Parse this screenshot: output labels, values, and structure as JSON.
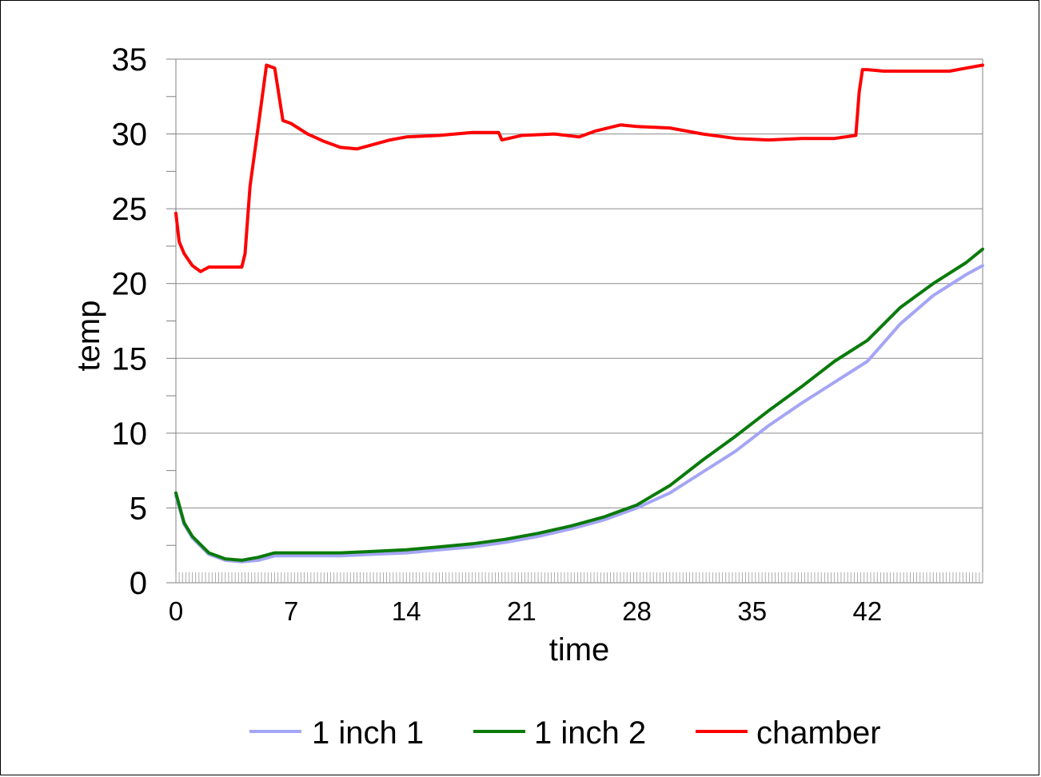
{
  "chart_data": {
    "type": "line",
    "title": "",
    "xlabel": "time",
    "ylabel": "temp",
    "xlim": [
      0,
      49
    ],
    "ylim": [
      0,
      35
    ],
    "x_ticks": [
      "0",
      "7",
      "14",
      "21",
      "28",
      "35",
      "42"
    ],
    "y_ticks": [
      "0",
      "5",
      "10",
      "15",
      "20",
      "25",
      "30",
      "35"
    ],
    "grid": "horizontal",
    "legend_position": "bottom",
    "series": [
      {
        "name": "1 inch 1",
        "color": "#A5A5F5",
        "x": [
          0,
          0.5,
          1,
          2,
          3,
          4,
          5,
          6,
          7,
          8,
          10,
          12,
          14,
          16,
          18,
          20,
          22,
          24,
          26,
          28,
          30,
          32,
          34,
          36,
          38,
          40,
          42,
          44,
          46,
          48,
          49
        ],
        "y": [
          5.8,
          3.9,
          3.0,
          1.9,
          1.5,
          1.4,
          1.5,
          1.8,
          1.8,
          1.8,
          1.8,
          1.9,
          2.0,
          2.2,
          2.4,
          2.7,
          3.1,
          3.6,
          4.2,
          5.0,
          6.0,
          7.4,
          8.8,
          10.5,
          12.0,
          13.4,
          14.8,
          17.3,
          19.2,
          20.6,
          21.2
        ]
      },
      {
        "name": "1 inch 2",
        "color": "#0A7A0A",
        "x": [
          0,
          0.5,
          1,
          2,
          3,
          4,
          5,
          6,
          7,
          8,
          10,
          12,
          14,
          16,
          18,
          20,
          22,
          24,
          26,
          28,
          30,
          32,
          34,
          36,
          38,
          40,
          42,
          44,
          46,
          48,
          49
        ],
        "y": [
          6.0,
          4.0,
          3.1,
          2.0,
          1.6,
          1.5,
          1.7,
          2.0,
          2.0,
          2.0,
          2.0,
          2.1,
          2.2,
          2.4,
          2.6,
          2.9,
          3.3,
          3.8,
          4.4,
          5.2,
          6.5,
          8.2,
          9.8,
          11.5,
          13.1,
          14.8,
          16.2,
          18.4,
          20.0,
          21.4,
          22.3
        ]
      },
      {
        "name": "chamber",
        "color": "#FF0000",
        "x": [
          0,
          0.2,
          0.5,
          1,
          1.5,
          2,
          3,
          4,
          4.2,
          4.5,
          5,
          5.5,
          6,
          6.2,
          6.5,
          7,
          8,
          9,
          10,
          11,
          12,
          13,
          14,
          16,
          18,
          19.6,
          19.8,
          21,
          23,
          24.5,
          25.5,
          27,
          28,
          30,
          32,
          34,
          36,
          38,
          40,
          41.3,
          41.5,
          41.7,
          42,
          43,
          44,
          45,
          46,
          47,
          48,
          49
        ],
        "y": [
          24.7,
          22.8,
          22.0,
          21.2,
          20.8,
          21.1,
          21.1,
          21.1,
          22.0,
          26.5,
          30.5,
          34.6,
          34.4,
          33.0,
          30.9,
          30.7,
          30.0,
          29.5,
          29.1,
          29.0,
          29.3,
          29.6,
          29.8,
          29.9,
          30.1,
          30.1,
          29.6,
          29.9,
          30.0,
          29.8,
          30.2,
          30.6,
          30.5,
          30.4,
          30.0,
          29.7,
          29.6,
          29.7,
          29.7,
          29.9,
          32.8,
          34.3,
          34.3,
          34.2,
          34.2,
          34.2,
          34.2,
          34.2,
          34.4,
          34.6
        ]
      }
    ]
  }
}
